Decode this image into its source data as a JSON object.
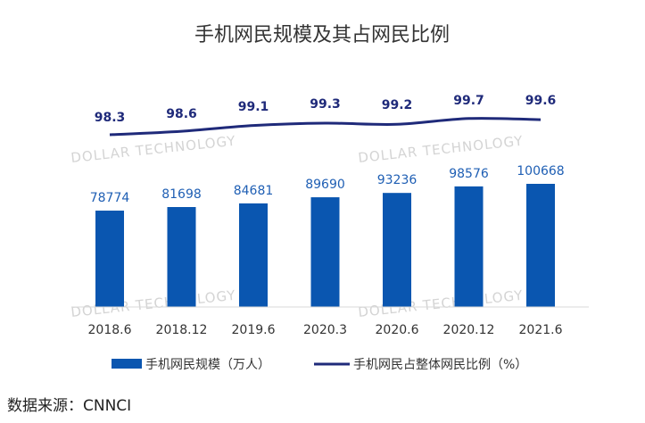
{
  "chart_data": {
    "type": "bar",
    "title": "手机网民规模及其占网民比例",
    "categories": [
      "2018.6",
      "2018.12",
      "2019.6",
      "2020.3",
      "2020.6",
      "2020.12",
      "2021.6"
    ],
    "series": [
      {
        "name": "手机网民规模（万人）",
        "type": "bar",
        "values": [
          78774,
          81698,
          84681,
          89690,
          93236,
          98576,
          100668
        ]
      },
      {
        "name": "手机网民占整体网民比例（%）",
        "type": "line",
        "values": [
          98.3,
          98.6,
          99.1,
          99.3,
          99.2,
          99.7,
          99.6
        ]
      }
    ],
    "bar_labels": [
      "78774",
      "81698",
      "84681",
      "89690",
      "93236",
      "98576",
      "100668"
    ],
    "line_labels": [
      "98.3",
      "98.6",
      "99.1",
      "99.3",
      "99.2",
      "99.7",
      "99.6"
    ],
    "legend_position": "bottom",
    "grid": false
  },
  "watermark": "DOLLAR TECHNOLOGY",
  "source": "数据来源：CNNCI",
  "colors": {
    "bar": "#0a56b0",
    "line": "#1f2a7a",
    "bar_label": "#1f5fb4",
    "axis": "#d9d9d9"
  }
}
